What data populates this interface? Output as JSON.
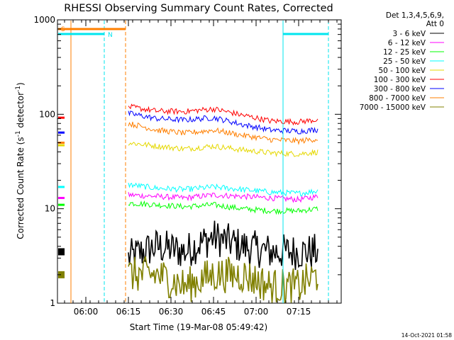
{
  "chart_data": {
    "type": "line",
    "title": "RHESSI Observing Summary Count Rates, Corrected",
    "xlabel": "Start Time (19-Mar-08 05:49:42)",
    "ylabel": "Corrected Count Rate (s⁻¹ detector⁻¹)",
    "ylabel_parts": {
      "text": "Corrected Count Rate (s",
      "sup1": "-1",
      "mid": " detector",
      "sup2": "-1",
      "end": ")"
    },
    "y_scale": "log",
    "ylim": [
      1,
      1000
    ],
    "y_ticks": [
      1,
      10,
      100,
      1000
    ],
    "y_tick_labels": [
      "1",
      "10",
      "100",
      "1000"
    ],
    "x_ticks": [
      "06:00",
      "06:15",
      "06:30",
      "06:45",
      "07:00",
      "07:15"
    ],
    "legend_placement": "top-right",
    "legend_header": [
      "Det 1,3,4,5,6,9,",
      "Att 0"
    ],
    "footer": "14-Oct-2021 01:58",
    "markers": [
      {
        "label": "S",
        "color": "#ff7f00"
      },
      {
        "label": "N",
        "color": "#00e5ee"
      }
    ],
    "series": [
      {
        "name": "3 - 6 keV",
        "color": "#000000",
        "values_start": [
          3.5
        ],
        "values_main": [
          3.0,
          4.0,
          3.5,
          5.0,
          4.0,
          3.5,
          3.5,
          3.5
        ],
        "times": [
          "06:15",
          "06:25",
          "06:35",
          "06:45",
          "06:55",
          "07:05",
          "07:15",
          "07:22"
        ]
      },
      {
        "name": "6 - 12 keV",
        "color": "#ff00ff",
        "values_start": [
          13
        ],
        "values_main": [
          14,
          13.5,
          13,
          14,
          13.5,
          13,
          12.5,
          13.5
        ],
        "times": [
          "06:15",
          "06:25",
          "06:35",
          "06:45",
          "06:55",
          "07:05",
          "07:15",
          "07:22"
        ]
      },
      {
        "name": "12 - 25 keV",
        "color": "#00ff00",
        "values_start": [
          11
        ],
        "values_main": [
          11.5,
          11,
          10.5,
          11,
          10,
          9.5,
          9.5,
          10
        ],
        "times": [
          "06:15",
          "06:25",
          "06:35",
          "06:45",
          "06:55",
          "07:05",
          "07:15",
          "07:22"
        ]
      },
      {
        "name": "25 - 50 keV",
        "color": "#00ffff",
        "values_start": [
          17
        ],
        "values_main": [
          18,
          16.5,
          16,
          17,
          16,
          15,
          14.5,
          15.5
        ],
        "times": [
          "06:15",
          "06:25",
          "06:35",
          "06:45",
          "06:55",
          "07:05",
          "07:15",
          "07:22"
        ]
      },
      {
        "name": "50 - 100 keV",
        "color": "#e5d800",
        "values_start": [
          47
        ],
        "values_main": [
          50,
          46,
          43,
          46,
          42,
          39,
          38,
          40
        ],
        "times": [
          "06:15",
          "06:25",
          "06:35",
          "06:45",
          "06:55",
          "07:05",
          "07:15",
          "07:22"
        ]
      },
      {
        "name": "100 - 300 keV",
        "color": "#ff0000",
        "values_start": [
          92
        ],
        "values_main": [
          120,
          108,
          107,
          114,
          98,
          85,
          83,
          88
        ],
        "times": [
          "06:15",
          "06:25",
          "06:35",
          "06:45",
          "06:55",
          "07:05",
          "07:15",
          "07:22"
        ]
      },
      {
        "name": "300 - 800 keV",
        "color": "#0000ff",
        "values_start": [
          64
        ],
        "values_main": [
          102,
          90,
          87,
          92,
          78,
          68,
          66,
          69
        ],
        "times": [
          "06:15",
          "06:25",
          "06:35",
          "06:45",
          "06:55",
          "07:05",
          "07:15",
          "07:22"
        ]
      },
      {
        "name": "800 - 7000 keV",
        "color": "#ff7f00",
        "values_start": [
          50
        ],
        "values_main": [
          80,
          68,
          63,
          68,
          60,
          54,
          52,
          55
        ],
        "times": [
          "06:15",
          "06:25",
          "06:35",
          "06:45",
          "06:55",
          "07:05",
          "07:15",
          "07:22"
        ]
      },
      {
        "name": "7000 - 15000 keV",
        "color": "#808000",
        "values_start": [
          2
        ],
        "values_main": [
          2.0,
          2.0,
          1.5,
          2.0,
          2.0,
          1.5,
          1.5,
          2.0
        ],
        "times": [
          "06:15",
          "06:25",
          "06:35",
          "06:45",
          "06:55",
          "07:05",
          "07:15",
          "07:22"
        ]
      }
    ]
  }
}
